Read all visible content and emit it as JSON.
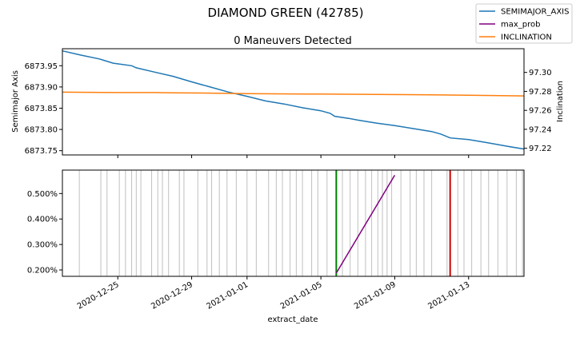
{
  "figure": {
    "suptitle": "DIAMOND GREEN (42785)",
    "top_title": "0 Maneuvers Detected",
    "xlabel": "extract_date"
  },
  "legend": {
    "placement": "top-right",
    "entries": [
      {
        "label": "SEMIMAJOR_AXIS",
        "color": "#1f77b4"
      },
      {
        "label": "max_prob",
        "color": "#800080"
      },
      {
        "label": "INCLINATION",
        "color": "#ff7f0e"
      }
    ]
  },
  "chart_data": [
    {
      "type": "line",
      "title": "0 Maneuvers Detected",
      "xlabel": "",
      "ylabel": "Semimajor Axis",
      "y2label": "Inclination",
      "xlim": [
        "2020-12-22",
        "2021-01-16"
      ],
      "ylim": [
        6873.74,
        6873.99
      ],
      "y2lim": [
        97.213,
        97.325
      ],
      "yticks": [
        "6873.75",
        "6873.80",
        "6873.85",
        "6873.90",
        "6873.95"
      ],
      "y2ticks": [
        "97.22",
        "97.24",
        "97.26",
        "97.28",
        "97.30"
      ],
      "grid": false,
      "series": [
        {
          "name": "SEMIMAJOR_AXIS",
          "axis": "left",
          "color": "#1f77b4",
          "points": [
            [
              "2020-12-22",
              6873.985
            ],
            [
              "2020-12-23",
              6873.975
            ],
            [
              "2020-12-24",
              6873.966
            ],
            [
              "2020-12-24 18:00",
              6873.956
            ],
            [
              "2020-12-25 18:00",
              6873.95
            ],
            [
              "2020-12-26",
              6873.945
            ],
            [
              "2020-12-27",
              6873.935
            ],
            [
              "2020-12-28",
              6873.925
            ],
            [
              "2020-12-29",
              6873.912
            ],
            [
              "2020-12-30",
              6873.9
            ],
            [
              "2020-12-31",
              6873.888
            ],
            [
              "2021-01-01",
              6873.878
            ],
            [
              "2021-01-02",
              6873.867
            ],
            [
              "2021-01-03",
              6873.86
            ],
            [
              "2021-01-04",
              6873.851
            ],
            [
              "2021-01-05",
              6873.844
            ],
            [
              "2021-01-05 12:00",
              6873.838
            ],
            [
              "2021-01-05 18:00",
              6873.831
            ],
            [
              "2021-01-06 12:00",
              6873.826
            ],
            [
              "2021-01-07",
              6873.822
            ],
            [
              "2021-01-08",
              6873.815
            ],
            [
              "2021-01-09",
              6873.809
            ],
            [
              "2021-01-10",
              6873.802
            ],
            [
              "2021-01-11",
              6873.795
            ],
            [
              "2021-01-11 12:00",
              6873.789
            ],
            [
              "2021-01-12",
              6873.78
            ],
            [
              "2021-01-13",
              6873.776
            ],
            [
              "2021-01-14",
              6873.769
            ],
            [
              "2021-01-15",
              6873.761
            ],
            [
              "2021-01-16",
              6873.754
            ]
          ]
        },
        {
          "name": "INCLINATION",
          "axis": "right",
          "color": "#ff7f0e",
          "points": [
            [
              "2020-12-22",
              97.2792
            ],
            [
              "2020-12-25",
              97.2788
            ],
            [
              "2020-12-27",
              97.2788
            ],
            [
              "2020-12-28",
              97.2784
            ],
            [
              "2020-12-30",
              97.2782
            ],
            [
              "2021-01-01",
              97.2776
            ],
            [
              "2021-01-05",
              97.2772
            ],
            [
              "2021-01-08",
              97.2768
            ],
            [
              "2021-01-11",
              97.2764
            ],
            [
              "2021-01-13",
              97.276
            ],
            [
              "2021-01-16",
              97.2752
            ]
          ]
        }
      ]
    },
    {
      "type": "line",
      "title": "",
      "xlabel": "extract_date",
      "ylabel": "",
      "xlim": [
        "2020-12-22",
        "2021-01-16"
      ],
      "ylim": [
        0.00175,
        0.00592
      ],
      "yticks": [
        "0.200%",
        "0.300%",
        "0.400%",
        "0.500%"
      ],
      "xticks": [
        "2020-12-25",
        "2020-12-29",
        "2021-01-01",
        "2021-01-05",
        "2021-01-09",
        "2021-01-13"
      ],
      "grid": false,
      "series": [
        {
          "name": "max_prob",
          "color": "#800080",
          "points": [
            [
              "2021-01-05 20:00",
              0.00188
            ],
            [
              "2021-01-09",
              0.00572
            ]
          ]
        }
      ],
      "vertical_lines": {
        "observations_color": "#c0c0c0",
        "observations": [
          "2020-12-22 22:00",
          "2020-12-24 02:00",
          "2020-12-24 10:00",
          "2020-12-25 02:00",
          "2020-12-25 10:00",
          "2020-12-25 18:00",
          "2020-12-26 00:00",
          "2020-12-26 06:00",
          "2020-12-26 20:00",
          "2020-12-27 04:00",
          "2020-12-27 10:00",
          "2020-12-27 18:00",
          "2020-12-28 08:00",
          "2020-12-28 14:00",
          "2020-12-29 08:00",
          "2020-12-29 20:00",
          "2020-12-30 02:00",
          "2020-12-30 12:00",
          "2020-12-30 22:00",
          "2020-12-31 10:00",
          "2021-01-01 00:00",
          "2021-01-01 12:00",
          "2021-01-02 04:00",
          "2021-01-02 14:00",
          "2021-01-02 22:00",
          "2021-01-03 08:00",
          "2021-01-03 16:00",
          "2021-01-04 00:00",
          "2021-01-04 12:00",
          "2021-01-04 20:00",
          "2021-01-05 08:00",
          "2021-01-06 04:00",
          "2021-01-06 14:00",
          "2021-01-07 00:00",
          "2021-01-07 10:00",
          "2021-01-07 18:00",
          "2021-01-08 02:00",
          "2021-01-08 08:00",
          "2021-01-08 14:00",
          "2021-01-08 20:00",
          "2021-01-09 08:00",
          "2021-01-09 20:00",
          "2021-01-10 04:00",
          "2021-01-10 14:00",
          "2021-01-11 00:00",
          "2021-01-11 20:00",
          "2021-01-12 10:00",
          "2021-01-12 18:00",
          "2021-01-13 04:00",
          "2021-01-13 16:00",
          "2021-01-14 02:00",
          "2021-01-14 14:00",
          "2021-01-15 02:00",
          "2021-01-15 14:00",
          "2021-01-15 22:00"
        ],
        "markers": [
          {
            "date": "2021-01-05 20:00",
            "color": "#008000"
          },
          {
            "date": "2021-01-12 00:00",
            "color": "#cc0000"
          }
        ]
      }
    }
  ]
}
